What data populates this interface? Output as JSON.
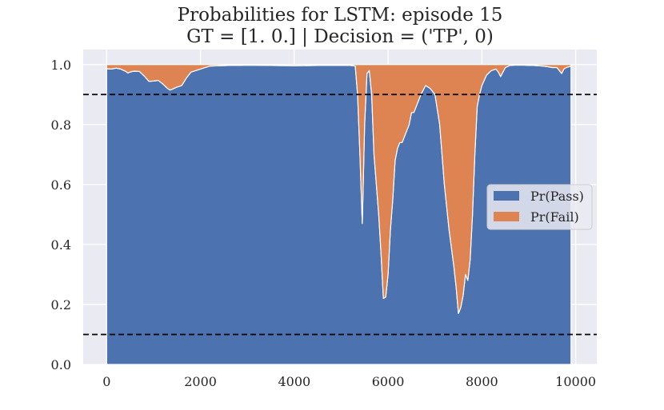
{
  "chart_data": {
    "type": "area",
    "title": "Probabilities for LSTM: episode 15",
    "subtitle": "GT = [1. 0.] | Decision = ('TP', 0)",
    "xlabel": "",
    "ylabel": "",
    "xlim": [
      -500,
      10450
    ],
    "ylim": [
      0.0,
      1.05
    ],
    "xticks": [
      0,
      2000,
      4000,
      6000,
      8000,
      10000
    ],
    "xtick_labels": [
      "0",
      "2000",
      "4000",
      "6000",
      "8000",
      "10000"
    ],
    "yticks": [
      0.0,
      0.2,
      0.4,
      0.6,
      0.8,
      1.0
    ],
    "ytick_labels": [
      "0.0",
      "0.2",
      "0.4",
      "0.6",
      "0.8",
      "1.0"
    ],
    "grid": true,
    "legend_position": "center-right",
    "threshold_lines": [
      0.9,
      0.1
    ],
    "x": [
      0,
      100,
      200,
      300,
      400,
      450,
      500,
      550,
      600,
      700,
      800,
      900,
      1000,
      1100,
      1200,
      1300,
      1350,
      1400,
      1500,
      1600,
      1700,
      1800,
      1900,
      2000,
      2200,
      2400,
      2600,
      2800,
      3000,
      3500,
      4000,
      4500,
      5000,
      5200,
      5300,
      5350,
      5400,
      5450,
      5500,
      5550,
      5600,
      5650,
      5700,
      5800,
      5850,
      5900,
      5950,
      6000,
      6050,
      6100,
      6150,
      6200,
      6250,
      6300,
      6400,
      6450,
      6500,
      6550,
      6600,
      6700,
      6800,
      6900,
      7000,
      7100,
      7200,
      7300,
      7400,
      7450,
      7500,
      7550,
      7600,
      7650,
      7700,
      7750,
      7800,
      7850,
      7900,
      7950,
      8000,
      8100,
      8200,
      8300,
      8350,
      8400,
      8500,
      8600,
      8700,
      8800,
      8900,
      9000,
      9100,
      9200,
      9300,
      9400,
      9500,
      9600,
      9650,
      9700,
      9750,
      9800,
      9900
    ],
    "categories": [],
    "series": [
      {
        "name": "Pr(Pass)",
        "color": "#4c72b0",
        "values": [
          0.986,
          0.985,
          0.988,
          0.985,
          0.978,
          0.972,
          0.975,
          0.977,
          0.978,
          0.977,
          0.962,
          0.944,
          0.945,
          0.947,
          0.935,
          0.92,
          0.915,
          0.918,
          0.925,
          0.93,
          0.955,
          0.975,
          0.98,
          0.985,
          0.995,
          0.996,
          0.997,
          0.997,
          0.998,
          0.997,
          0.996,
          0.997,
          0.997,
          0.997,
          0.995,
          0.9,
          0.7,
          0.47,
          0.8,
          0.97,
          0.98,
          0.9,
          0.7,
          0.5,
          0.37,
          0.22,
          0.225,
          0.3,
          0.45,
          0.55,
          0.68,
          0.72,
          0.74,
          0.74,
          0.78,
          0.8,
          0.84,
          0.84,
          0.86,
          0.9,
          0.93,
          0.92,
          0.9,
          0.8,
          0.6,
          0.45,
          0.33,
          0.26,
          0.17,
          0.19,
          0.23,
          0.3,
          0.28,
          0.35,
          0.5,
          0.7,
          0.86,
          0.9,
          0.93,
          0.965,
          0.98,
          0.985,
          0.975,
          0.96,
          0.99,
          0.997,
          0.998,
          0.998,
          0.998,
          0.997,
          0.997,
          0.996,
          0.995,
          0.993,
          0.99,
          0.99,
          0.98,
          0.97,
          0.985,
          0.99,
          0.995
        ]
      },
      {
        "name": "Pr(Fail)",
        "color": "#dd8452",
        "values": [
          0.014,
          0.015,
          0.012,
          0.015,
          0.022,
          0.028,
          0.025,
          0.023,
          0.022,
          0.023,
          0.038,
          0.056,
          0.055,
          0.053,
          0.065,
          0.08,
          0.085,
          0.082,
          0.075,
          0.07,
          0.045,
          0.025,
          0.02,
          0.015,
          0.005,
          0.004,
          0.003,
          0.003,
          0.002,
          0.003,
          0.004,
          0.003,
          0.003,
          0.003,
          0.005,
          0.1,
          0.3,
          0.53,
          0.2,
          0.03,
          0.02,
          0.1,
          0.3,
          0.5,
          0.63,
          0.78,
          0.775,
          0.7,
          0.55,
          0.45,
          0.32,
          0.28,
          0.26,
          0.26,
          0.22,
          0.2,
          0.16,
          0.16,
          0.14,
          0.1,
          0.07,
          0.08,
          0.1,
          0.2,
          0.4,
          0.55,
          0.67,
          0.74,
          0.83,
          0.81,
          0.77,
          0.7,
          0.72,
          0.65,
          0.5,
          0.3,
          0.14,
          0.1,
          0.07,
          0.035,
          0.02,
          0.015,
          0.025,
          0.04,
          0.01,
          0.003,
          0.002,
          0.002,
          0.002,
          0.003,
          0.003,
          0.004,
          0.005,
          0.007,
          0.01,
          0.01,
          0.02,
          0.03,
          0.015,
          0.01,
          0.005
        ]
      }
    ]
  }
}
